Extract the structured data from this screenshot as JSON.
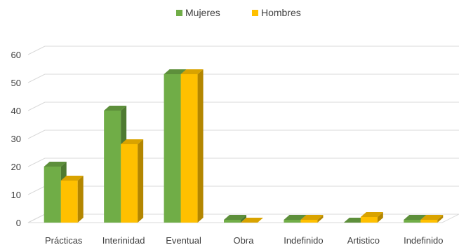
{
  "chart_data": {
    "type": "bar",
    "title": "",
    "xlabel": "",
    "ylabel": "",
    "categories": [
      "Prácticas",
      "Interinidad",
      "Eventual",
      "Obra",
      "Indefinido",
      "Artistico",
      "Indefinido"
    ],
    "series": [
      {
        "name": "Mujeres",
        "values": [
          20,
          40,
          53,
          1,
          1,
          0,
          1
        ],
        "color": "#70ad47",
        "side_color": "#4e7a31",
        "top_color": "#5d8f3b"
      },
      {
        "name": "Hombres",
        "values": [
          15,
          28,
          53,
          0,
          1,
          2,
          1
        ],
        "color": "#ffc000",
        "side_color": "#b38600",
        "top_color": "#d9a300"
      }
    ],
    "ylim": [
      0,
      60
    ],
    "yticks": [
      0,
      10,
      20,
      30,
      40,
      50,
      60
    ],
    "grid": true,
    "legend_position": "top-center",
    "style": "3d-clustered-column"
  }
}
